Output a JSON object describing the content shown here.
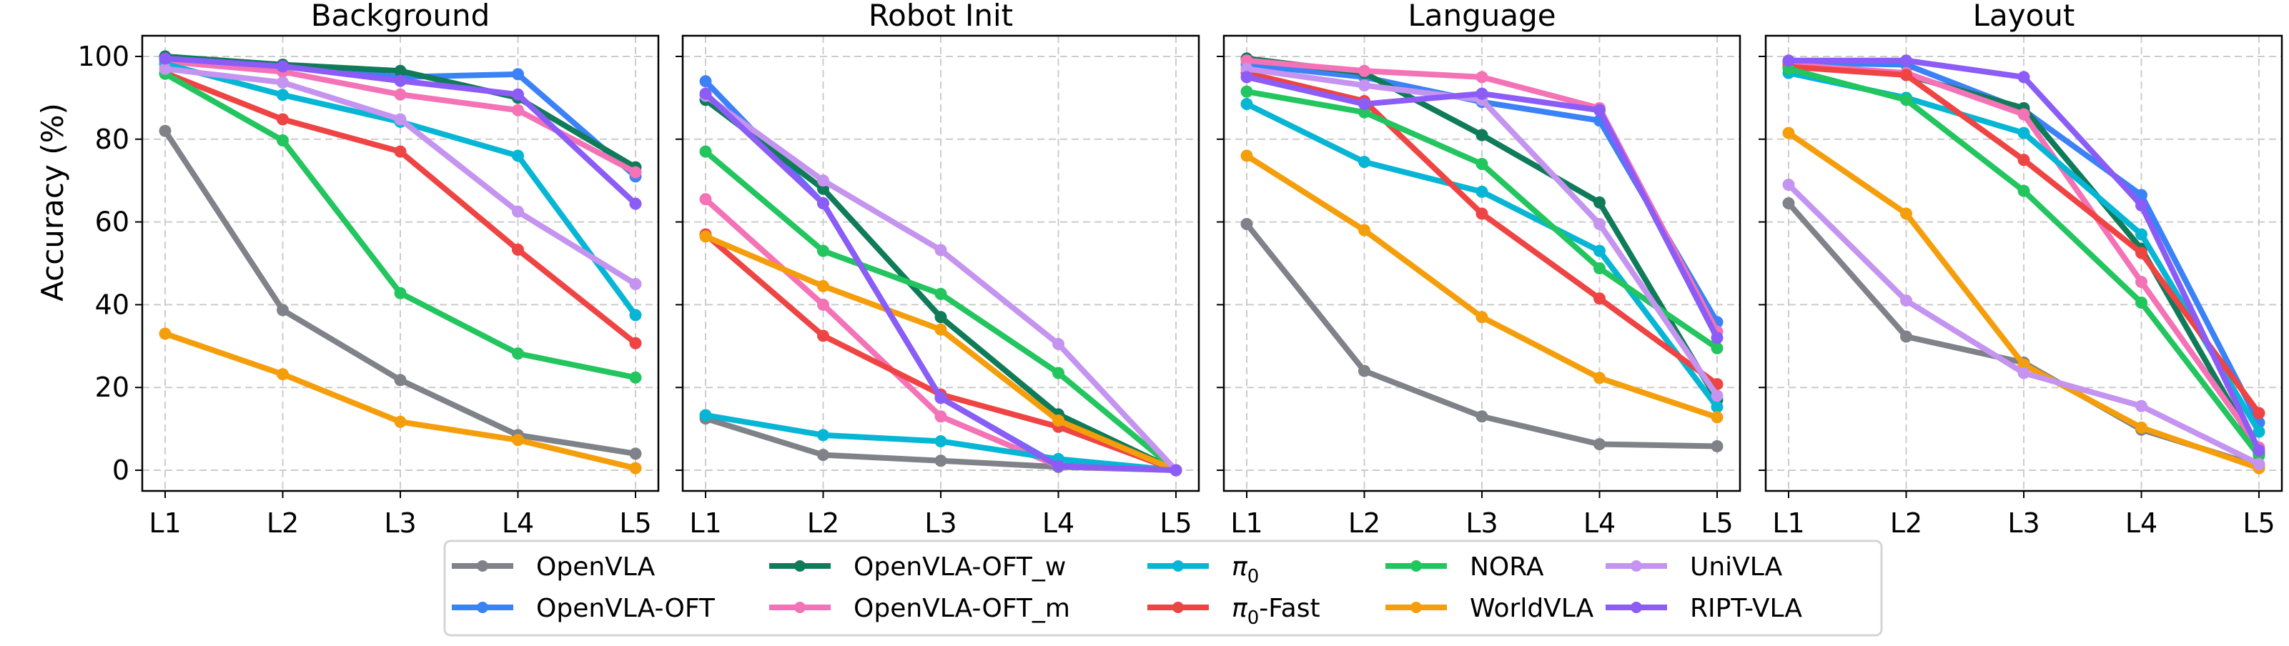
{
  "chart_data": {
    "type": "line",
    "ylabel": "Accuracy (%)",
    "xlabel": "",
    "ylim": [
      -5,
      105
    ],
    "yticks": [
      "0",
      "20",
      "40",
      "60",
      "80",
      "100"
    ],
    "ytick_values": [
      0,
      20,
      40,
      60,
      80,
      100
    ],
    "categories": [
      "L1",
      "L2",
      "L3",
      "L4",
      "L5"
    ],
    "grid": true,
    "legend_position": "bottom-center",
    "legend_columns": 6,
    "series_meta": [
      {
        "name": "OpenVLA",
        "color": "#7f8288"
      },
      {
        "name": "OpenVLA-OFT",
        "color": "#3b82f6"
      },
      {
        "name": "OpenVLA-OFT_w",
        "color": "#0f7b58"
      },
      {
        "name": "OpenVLA-OFT_m",
        "color": "#f472b6"
      },
      {
        "name": "π0",
        "color": "#06b6d4"
      },
      {
        "name": "π0-Fast",
        "color": "#ef4444"
      },
      {
        "name": "NORA",
        "color": "#22c55e"
      },
      {
        "name": "WorldVLA",
        "color": "#f59e0b"
      },
      {
        "name": "UniVLA",
        "color": "#c494f0"
      },
      {
        "name": "RIPT-VLA",
        "color": "#8b5cf6"
      }
    ],
    "panels": [
      {
        "title": "Background",
        "series": [
          {
            "name": "OpenVLA",
            "values": [
              82,
              38.7,
              21.8,
              8.5,
              4
            ]
          },
          {
            "name": "OpenVLA-OFT",
            "values": [
              99.5,
              97.5,
              95,
              95.7,
              71
            ]
          },
          {
            "name": "OpenVLA-OFT_w",
            "values": [
              100,
              98,
              96.5,
              90,
              73.2
            ]
          },
          {
            "name": "OpenVLA-OFT_m",
            "values": [
              98.8,
              96.3,
              90.8,
              87,
              72
            ]
          },
          {
            "name": "π0",
            "values": [
              98.2,
              90.7,
              84.2,
              76,
              37.5
            ]
          },
          {
            "name": "π0-Fast",
            "values": [
              96,
              84.8,
              77,
              53.3,
              30.7
            ]
          },
          {
            "name": "NORA",
            "values": [
              95.8,
              79.7,
              42.8,
              28.2,
              22.4
            ]
          },
          {
            "name": "WorldVLA",
            "values": [
              33,
              23.2,
              11.7,
              7.3,
              0.5
            ]
          },
          {
            "name": "UniVLA",
            "values": [
              97,
              93.7,
              84.8,
              62.5,
              45
            ]
          },
          {
            "name": "RIPT-VLA",
            "values": [
              99.5,
              97.6,
              94.1,
              90.8,
              64.4
            ]
          }
        ]
      },
      {
        "title": "Robot Init",
        "series": [
          {
            "name": "OpenVLA",
            "values": [
              12.5,
              3.7,
              2.3,
              0.8,
              0
            ]
          },
          {
            "name": "OpenVLA-OFT",
            "values": [
              94,
              64.5,
              17.5,
              1.2,
              0
            ]
          },
          {
            "name": "OpenVLA-OFT_w",
            "values": [
              89.5,
              68,
              37,
              13.5,
              0
            ]
          },
          {
            "name": "OpenVLA-OFT_m",
            "values": [
              65.5,
              40,
              13,
              1,
              0
            ]
          },
          {
            "name": "π0",
            "values": [
              13.3,
              8.5,
              7,
              2.7,
              0
            ]
          },
          {
            "name": "π0-Fast",
            "values": [
              57,
              32.5,
              18.3,
              10.5,
              0
            ]
          },
          {
            "name": "NORA",
            "values": [
              77,
              53,
              42.6,
              23.5,
              0
            ]
          },
          {
            "name": "WorldVLA",
            "values": [
              56.5,
              44.5,
              34,
              12,
              0
            ]
          },
          {
            "name": "UniVLA",
            "values": [
              90.5,
              70,
              53.2,
              30.5,
              0
            ]
          },
          {
            "name": "RIPT-VLA",
            "values": [
              91,
              64.5,
              17.5,
              1,
              0
            ]
          }
        ]
      },
      {
        "title": "Language",
        "series": [
          {
            "name": "OpenVLA",
            "values": [
              59.5,
              24,
              13,
              6.3,
              5.8
            ]
          },
          {
            "name": "OpenVLA-OFT",
            "values": [
              98,
              95,
              89,
              84.5,
              35.8
            ]
          },
          {
            "name": "OpenVLA-OFT_w",
            "values": [
              99.5,
              96,
              81,
              64.7,
              17
            ]
          },
          {
            "name": "OpenVLA-OFT_m",
            "values": [
              99,
              96.5,
              95,
              87.5,
              33.5
            ]
          },
          {
            "name": "π0",
            "values": [
              88.5,
              74.5,
              67.3,
              53,
              15.3
            ]
          },
          {
            "name": "π0-Fast",
            "values": [
              96,
              89.2,
              62,
              41.5,
              20.8
            ]
          },
          {
            "name": "NORA",
            "values": [
              91.5,
              86.5,
              74,
              48.8,
              29.5
            ]
          },
          {
            "name": "WorldVLA",
            "values": [
              76,
              58,
              37,
              22.3,
              12.8
            ]
          },
          {
            "name": "UniVLA",
            "values": [
              97,
              93,
              89.5,
              59.5,
              18
            ]
          },
          {
            "name": "RIPT-VLA",
            "values": [
              95,
              88.5,
              91,
              87,
              32
            ]
          }
        ]
      },
      {
        "title": "Layout",
        "series": [
          {
            "name": "OpenVLA",
            "values": [
              64.5,
              32.3,
              26,
              9.8,
              1
            ]
          },
          {
            "name": "OpenVLA-OFT",
            "values": [
              98.5,
              98,
              87,
              66.5,
              11.5
            ]
          },
          {
            "name": "OpenVLA-OFT_w",
            "values": [
              98,
              95.5,
              87.5,
              53.5,
              4
            ]
          },
          {
            "name": "OpenVLA-OFT_m",
            "values": [
              98,
              96,
              86,
              45.5,
              5.5
            ]
          },
          {
            "name": "π0",
            "values": [
              96,
              90,
              81.5,
              57,
              9.3
            ]
          },
          {
            "name": "π0-Fast",
            "values": [
              97.5,
              95.5,
              75,
              52.5,
              13.8
            ]
          },
          {
            "name": "NORA",
            "values": [
              97,
              89.5,
              67.5,
              40.5,
              3.5
            ]
          },
          {
            "name": "WorldVLA",
            "values": [
              81.5,
              62,
              25.5,
              10.3,
              0.5
            ]
          },
          {
            "name": "UniVLA",
            "values": [
              69,
              41,
              23.5,
              15.5,
              1.5
            ]
          },
          {
            "name": "RIPT-VLA",
            "values": [
              99,
              99,
              95,
              64,
              4.8
            ]
          }
        ]
      }
    ],
    "legend": [
      {
        "label": "OpenVLA",
        "sub": ""
      },
      {
        "label": "OpenVLA-OFT",
        "sub": ""
      },
      {
        "label": "OpenVLA-OFT_w",
        "sub": ""
      },
      {
        "label": "OpenVLA-OFT_m",
        "sub": ""
      },
      {
        "label": "π",
        "sub": "0"
      },
      {
        "label": "π",
        "sub": "0",
        "suffix": "-Fast"
      },
      {
        "label": "NORA",
        "sub": ""
      },
      {
        "label": "WorldVLA",
        "sub": ""
      },
      {
        "label": "UniVLA",
        "sub": ""
      },
      {
        "label": "RIPT-VLA",
        "sub": ""
      }
    ]
  }
}
